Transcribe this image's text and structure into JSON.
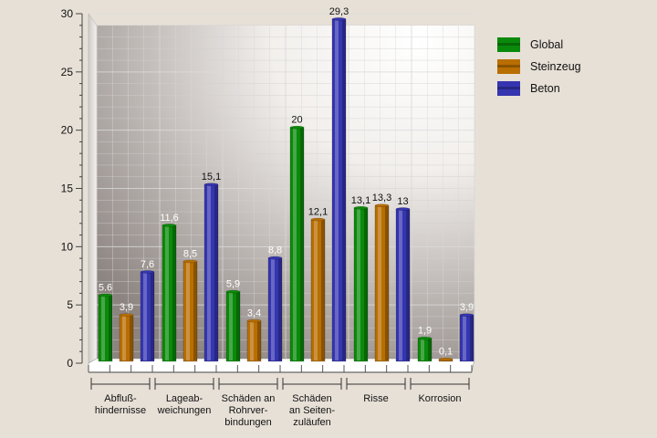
{
  "chart_data": {
    "type": "bar",
    "title": "",
    "xlabel": "",
    "ylabel": "",
    "ylim": [
      0,
      30
    ],
    "yticks": [
      "0",
      "5",
      "10",
      "15",
      "20",
      "25",
      "30"
    ],
    "grid": true,
    "legend_position": "top-right",
    "categories": [
      [
        "Abfluß-",
        "hindernisse"
      ],
      [
        "Lageab-",
        "weichungen"
      ],
      [
        "Schäden an",
        "Rohrver-",
        "bindungen"
      ],
      [
        "Schäden",
        "an Seiten-",
        "zuläufen"
      ],
      [
        "Risse"
      ],
      [
        "Korrosion"
      ]
    ],
    "series": [
      {
        "name": "Global",
        "color": "#0a8a0a",
        "values": [
          5.6,
          11.6,
          5.9,
          20,
          13.1,
          1.9
        ],
        "labels": [
          "5.6",
          "11,6",
          "5,9",
          "20",
          "13,1",
          "1,9"
        ]
      },
      {
        "name": "Steinzeug",
        "color": "#b86e00",
        "values": [
          3.9,
          8.5,
          3.4,
          12.1,
          13.3,
          0.1
        ],
        "labels": [
          "3,9",
          "8,5",
          "3,4",
          "12,1",
          "13,3",
          "0,1"
        ]
      },
      {
        "name": "Beton",
        "color": "#3535b0",
        "values": [
          7.6,
          15.1,
          8.8,
          29.3,
          13,
          3.9
        ],
        "labels": [
          "7,6",
          "15,1",
          "8,8",
          "29,3",
          "13",
          "3,9"
        ]
      }
    ]
  }
}
